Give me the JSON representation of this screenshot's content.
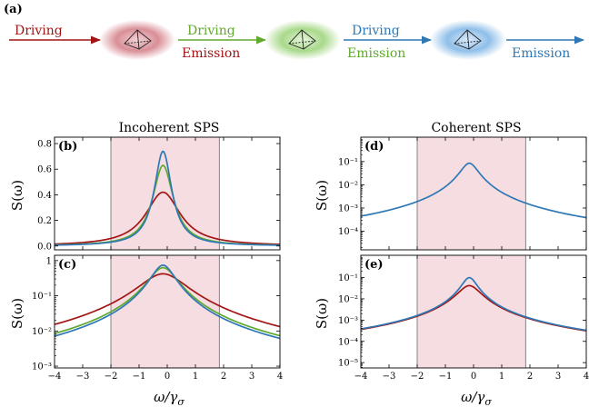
{
  "figure": {
    "panel_a_label": "(a)",
    "colors": {
      "red": "#a31515",
      "green": "#5fa92d",
      "blue": "#2f78b6",
      "shade": "#f6dde2"
    },
    "diagram": {
      "stage1_label": "Driving",
      "stage2_labels": [
        "Driving",
        "Emission"
      ],
      "stage3_labels": [
        "Driving",
        "Emission"
      ],
      "stage4_label": "Emission"
    },
    "left_title": "Incoherent SPS",
    "right_title": "Coherent SPS",
    "ylabel": "S(ω)",
    "xlabel_main": "ω/γ",
    "xlabel_sub": "σ"
  },
  "chart_data": [
    {
      "id": "b",
      "label": "(b)",
      "type": "line",
      "scale": "linear",
      "xlim": [
        -4,
        4
      ],
      "ylim": [
        -0.03,
        0.85
      ],
      "xticks": [
        -4,
        -3,
        -2,
        -1,
        0,
        1,
        2,
        3,
        4
      ],
      "yticks": [
        0.0,
        0.2,
        0.4,
        0.6,
        0.8
      ],
      "ytick_labels": [
        "0.0",
        "0.2",
        "0.4",
        "0.6",
        "0.8"
      ],
      "shade": [
        -2,
        1.85
      ],
      "series": [
        {
          "color": "#a31515",
          "center": -0.15,
          "peak": 0.42,
          "width": 0.75
        },
        {
          "color": "#5fa92d",
          "center": -0.15,
          "peak": 0.63,
          "width": 0.45
        },
        {
          "color": "#2f78b6",
          "center": -0.15,
          "peak": 0.74,
          "width": 0.38
        }
      ]
    },
    {
      "id": "c",
      "label": "(c)",
      "type": "line",
      "scale": "log",
      "xlim": [
        -4,
        4
      ],
      "ylim_log": [
        -3.05,
        0.15
      ],
      "xticks": [
        -4,
        -3,
        -2,
        -1,
        0,
        1,
        2,
        3,
        4
      ],
      "xtick_labels": [
        "−4",
        "−3",
        "−2",
        "−1",
        "0",
        "1",
        "2",
        "3",
        "4"
      ],
      "yticks_log": [
        -3,
        -2,
        -1,
        0
      ],
      "ytick_labels": [
        "10⁻³",
        "10⁻²",
        "10⁻¹",
        "1"
      ],
      "shade": [
        -2,
        1.85
      ],
      "series": [
        {
          "color": "#a31515",
          "center": -0.15,
          "peak": 0.42,
          "width": 0.75
        },
        {
          "color": "#5fa92d",
          "center": -0.15,
          "peak": 0.63,
          "width": 0.45
        },
        {
          "color": "#2f78b6",
          "center": -0.15,
          "peak": 0.74,
          "width": 0.38
        }
      ]
    },
    {
      "id": "d",
      "label": "(d)",
      "type": "line",
      "scale": "log",
      "xlim": [
        -4,
        4
      ],
      "ylim_log": [
        -4.8,
        0.05
      ],
      "xticks": [
        -4,
        -3,
        -2,
        -1,
        0,
        1,
        2,
        3,
        4
      ],
      "yticks_log": [
        -4,
        -3,
        -2,
        -1
      ],
      "ytick_labels": [
        "10⁻⁴",
        "10⁻³",
        "10⁻²",
        "10⁻¹"
      ],
      "shade": [
        -2,
        1.85
      ],
      "series": [
        {
          "color": "#2f78b6",
          "center": -0.15,
          "peak": 0.085,
          "width": 0.28
        }
      ]
    },
    {
      "id": "e",
      "label": "(e)",
      "type": "line",
      "scale": "log",
      "xlim": [
        -4,
        4
      ],
      "ylim_log": [
        -5.25,
        0.05
      ],
      "xticks": [
        -4,
        -3,
        -2,
        -1,
        0,
        1,
        2,
        3,
        4
      ],
      "xtick_labels": [
        "−4",
        "−3",
        "−2",
        "−1",
        "0",
        "1",
        "2",
        "3",
        "4"
      ],
      "yticks_log": [
        -5,
        -4,
        -3,
        -2,
        -1
      ],
      "ytick_labels": [
        "10⁻⁵",
        "10⁻⁴",
        "10⁻³",
        "10⁻²",
        "10⁻¹"
      ],
      "shade": [
        -2,
        1.85
      ],
      "series": [
        {
          "color": "#a31515",
          "center": -0.15,
          "peak": 0.042,
          "width": 0.36
        },
        {
          "color": "#2f78b6",
          "center": -0.15,
          "peak": 0.1,
          "width": 0.24
        }
      ]
    }
  ]
}
